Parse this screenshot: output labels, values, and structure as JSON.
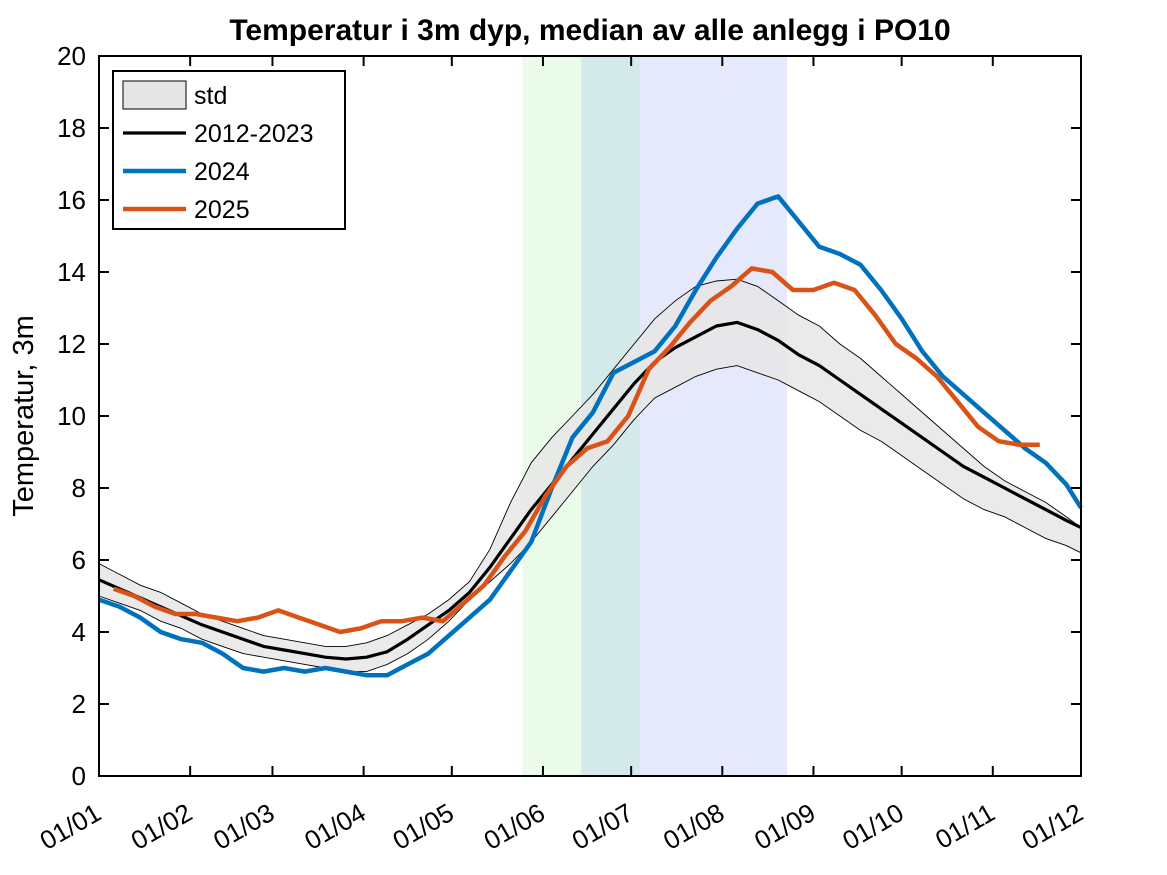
{
  "chart_data": {
    "type": "line",
    "title": "Temperatur i 3m dyp, median av alle anlegg i PO10",
    "xlabel": "",
    "ylabel": "Temperatur, 3m",
    "x_tick_labels": [
      "01/01",
      "01/02",
      "01/03",
      "01/04",
      "01/05",
      "01/06",
      "01/07",
      "01/08",
      "01/09",
      "01/10",
      "01/11",
      "01/12"
    ],
    "x_tick_days": [
      0,
      31,
      59,
      90,
      120,
      151,
      181,
      212,
      243,
      273,
      304,
      334
    ],
    "x_range_days": [
      0,
      334
    ],
    "ylim": [
      0,
      20
    ],
    "y_ticks": [
      0,
      2,
      4,
      6,
      8,
      10,
      12,
      14,
      16,
      18,
      20
    ],
    "grid": false,
    "legend_position": "top-left",
    "shaded_periods": [
      {
        "start_day": 144,
        "end_day": 164,
        "color": "#eafbea"
      },
      {
        "start_day": 164,
        "end_day": 184,
        "color": "#d4e9ea"
      },
      {
        "start_day": 184,
        "end_day": 234,
        "color": "#e6e8fc"
      }
    ],
    "std_band": {
      "name": "std",
      "fill": "#e6e6e6",
      "x_days": [
        0,
        7,
        14,
        21,
        28,
        35,
        42,
        49,
        56,
        63,
        70,
        77,
        84,
        91,
        98,
        105,
        112,
        119,
        126,
        133,
        140,
        147,
        154,
        161,
        168,
        175,
        182,
        189,
        196,
        203,
        210,
        217,
        224,
        231,
        238,
        245,
        252,
        259,
        266,
        273,
        280,
        287,
        294,
        301,
        308,
        315,
        322,
        329,
        334
      ],
      "upper": [
        5.9,
        5.6,
        5.3,
        5.1,
        4.8,
        4.5,
        4.3,
        4.1,
        3.9,
        3.8,
        3.7,
        3.6,
        3.6,
        3.7,
        3.9,
        4.2,
        4.5,
        4.9,
        5.4,
        6.3,
        7.6,
        8.7,
        9.4,
        10.0,
        10.6,
        11.3,
        12.0,
        12.7,
        13.2,
        13.6,
        13.75,
        13.8,
        13.6,
        13.2,
        12.8,
        12.5,
        12.0,
        11.6,
        11.1,
        10.6,
        10.1,
        9.6,
        9.1,
        8.6,
        8.2,
        7.9,
        7.6,
        7.2,
        6.9
      ],
      "lower": [
        5.0,
        4.8,
        4.6,
        4.3,
        4.1,
        3.8,
        3.6,
        3.4,
        3.3,
        3.2,
        3.1,
        3.0,
        2.9,
        2.9,
        3.1,
        3.4,
        3.8,
        4.3,
        4.9,
        5.4,
        5.9,
        6.5,
        7.2,
        7.9,
        8.6,
        9.2,
        9.9,
        10.5,
        10.8,
        11.1,
        11.3,
        11.4,
        11.2,
        11.0,
        10.7,
        10.4,
        10.0,
        9.6,
        9.3,
        8.9,
        8.5,
        8.1,
        7.7,
        7.4,
        7.2,
        6.9,
        6.6,
        6.4,
        6.2
      ]
    },
    "series": [
      {
        "name": "2012-2023",
        "color": "#000000",
        "width": 3.2,
        "x_days": [
          0,
          7,
          14,
          21,
          28,
          35,
          42,
          49,
          56,
          63,
          70,
          77,
          84,
          91,
          98,
          105,
          112,
          119,
          126,
          133,
          140,
          147,
          154,
          161,
          168,
          175,
          182,
          189,
          196,
          203,
          210,
          217,
          224,
          231,
          238,
          245,
          252,
          259,
          266,
          273,
          280,
          287,
          294,
          301,
          308,
          315,
          322,
          329,
          334
        ],
        "y": [
          5.45,
          5.2,
          4.95,
          4.7,
          4.45,
          4.2,
          4.0,
          3.8,
          3.6,
          3.5,
          3.4,
          3.3,
          3.25,
          3.3,
          3.45,
          3.8,
          4.2,
          4.6,
          5.1,
          5.8,
          6.6,
          7.4,
          8.1,
          8.8,
          9.5,
          10.2,
          10.9,
          11.5,
          11.9,
          12.2,
          12.5,
          12.6,
          12.4,
          12.1,
          11.7,
          11.4,
          11.0,
          10.6,
          10.2,
          9.8,
          9.4,
          9.0,
          8.6,
          8.3,
          8.0,
          7.7,
          7.4,
          7.1,
          6.9
        ]
      },
      {
        "name": "2024",
        "color": "#0072bd",
        "width": 4.5,
        "x_days": [
          0,
          7,
          14,
          21,
          28,
          35,
          42,
          49,
          56,
          63,
          70,
          77,
          84,
          91,
          98,
          105,
          112,
          119,
          126,
          133,
          140,
          147,
          154,
          161,
          168,
          175,
          182,
          189,
          196,
          203,
          210,
          217,
          224,
          231,
          238,
          245,
          252,
          259,
          266,
          273,
          280,
          287,
          294,
          301,
          308,
          315,
          322,
          329,
          334
        ],
        "y": [
          4.9,
          4.7,
          4.4,
          4.0,
          3.8,
          3.7,
          3.4,
          3.0,
          2.9,
          3.0,
          2.9,
          3.0,
          2.9,
          2.8,
          2.8,
          3.1,
          3.4,
          3.9,
          4.4,
          4.9,
          5.7,
          6.5,
          8.0,
          9.4,
          10.1,
          11.2,
          11.5,
          11.8,
          12.5,
          13.5,
          14.4,
          15.2,
          15.9,
          16.1,
          15.4,
          14.7,
          14.5,
          14.2,
          13.5,
          12.7,
          11.8,
          11.1,
          10.6,
          10.1,
          9.6,
          9.1,
          8.7,
          8.1,
          7.45
        ]
      },
      {
        "name": "2025",
        "color": "#d95319",
        "width": 4.5,
        "x_days": [
          5,
          12,
          19,
          26,
          33,
          40,
          47,
          54,
          61,
          68,
          75,
          82,
          89,
          96,
          103,
          110,
          117,
          124,
          131,
          138,
          145,
          152,
          159,
          166,
          173,
          180,
          187,
          194,
          201,
          208,
          215,
          222,
          229,
          236,
          243,
          250,
          257,
          264,
          271,
          278,
          285,
          292,
          299,
          306,
          313,
          320
        ],
        "y": [
          5.2,
          5.0,
          4.7,
          4.5,
          4.5,
          4.4,
          4.3,
          4.4,
          4.6,
          4.4,
          4.2,
          4.0,
          4.1,
          4.3,
          4.3,
          4.4,
          4.3,
          4.8,
          5.3,
          6.1,
          6.8,
          7.8,
          8.6,
          9.1,
          9.3,
          10.0,
          11.3,
          11.9,
          12.6,
          13.2,
          13.6,
          14.1,
          14.0,
          13.5,
          13.5,
          13.7,
          13.5,
          12.8,
          12.0,
          11.6,
          11.1,
          10.4,
          9.7,
          9.3,
          9.2,
          9.2
        ]
      }
    ]
  }
}
